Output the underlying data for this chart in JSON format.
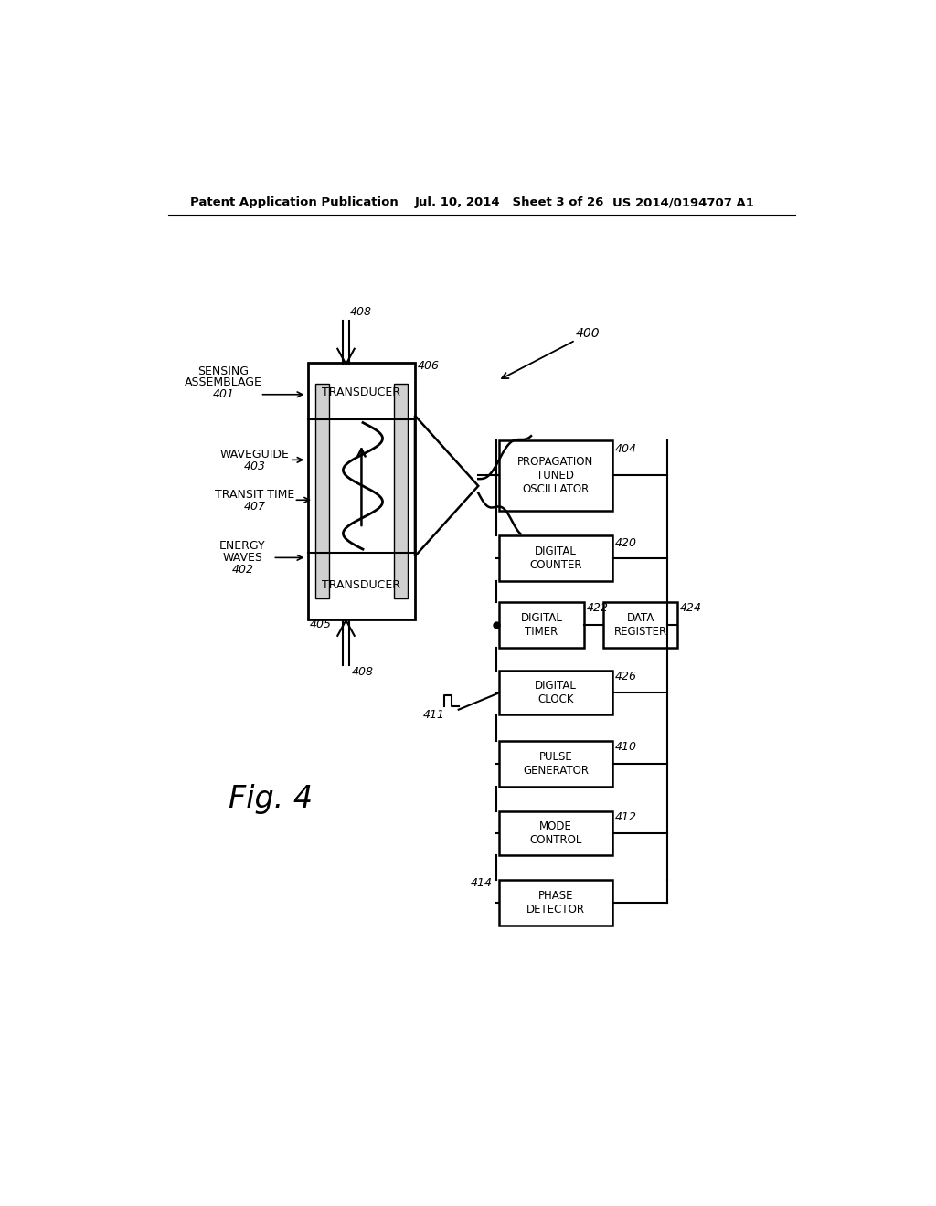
{
  "background": "#ffffff",
  "line_color": "#000000",
  "header_left": "Patent Application Publication",
  "header_mid": "Jul. 10, 2014   Sheet 3 of 26",
  "header_right": "US 2014/0194707 A1",
  "fig_label": "Fig. 4"
}
